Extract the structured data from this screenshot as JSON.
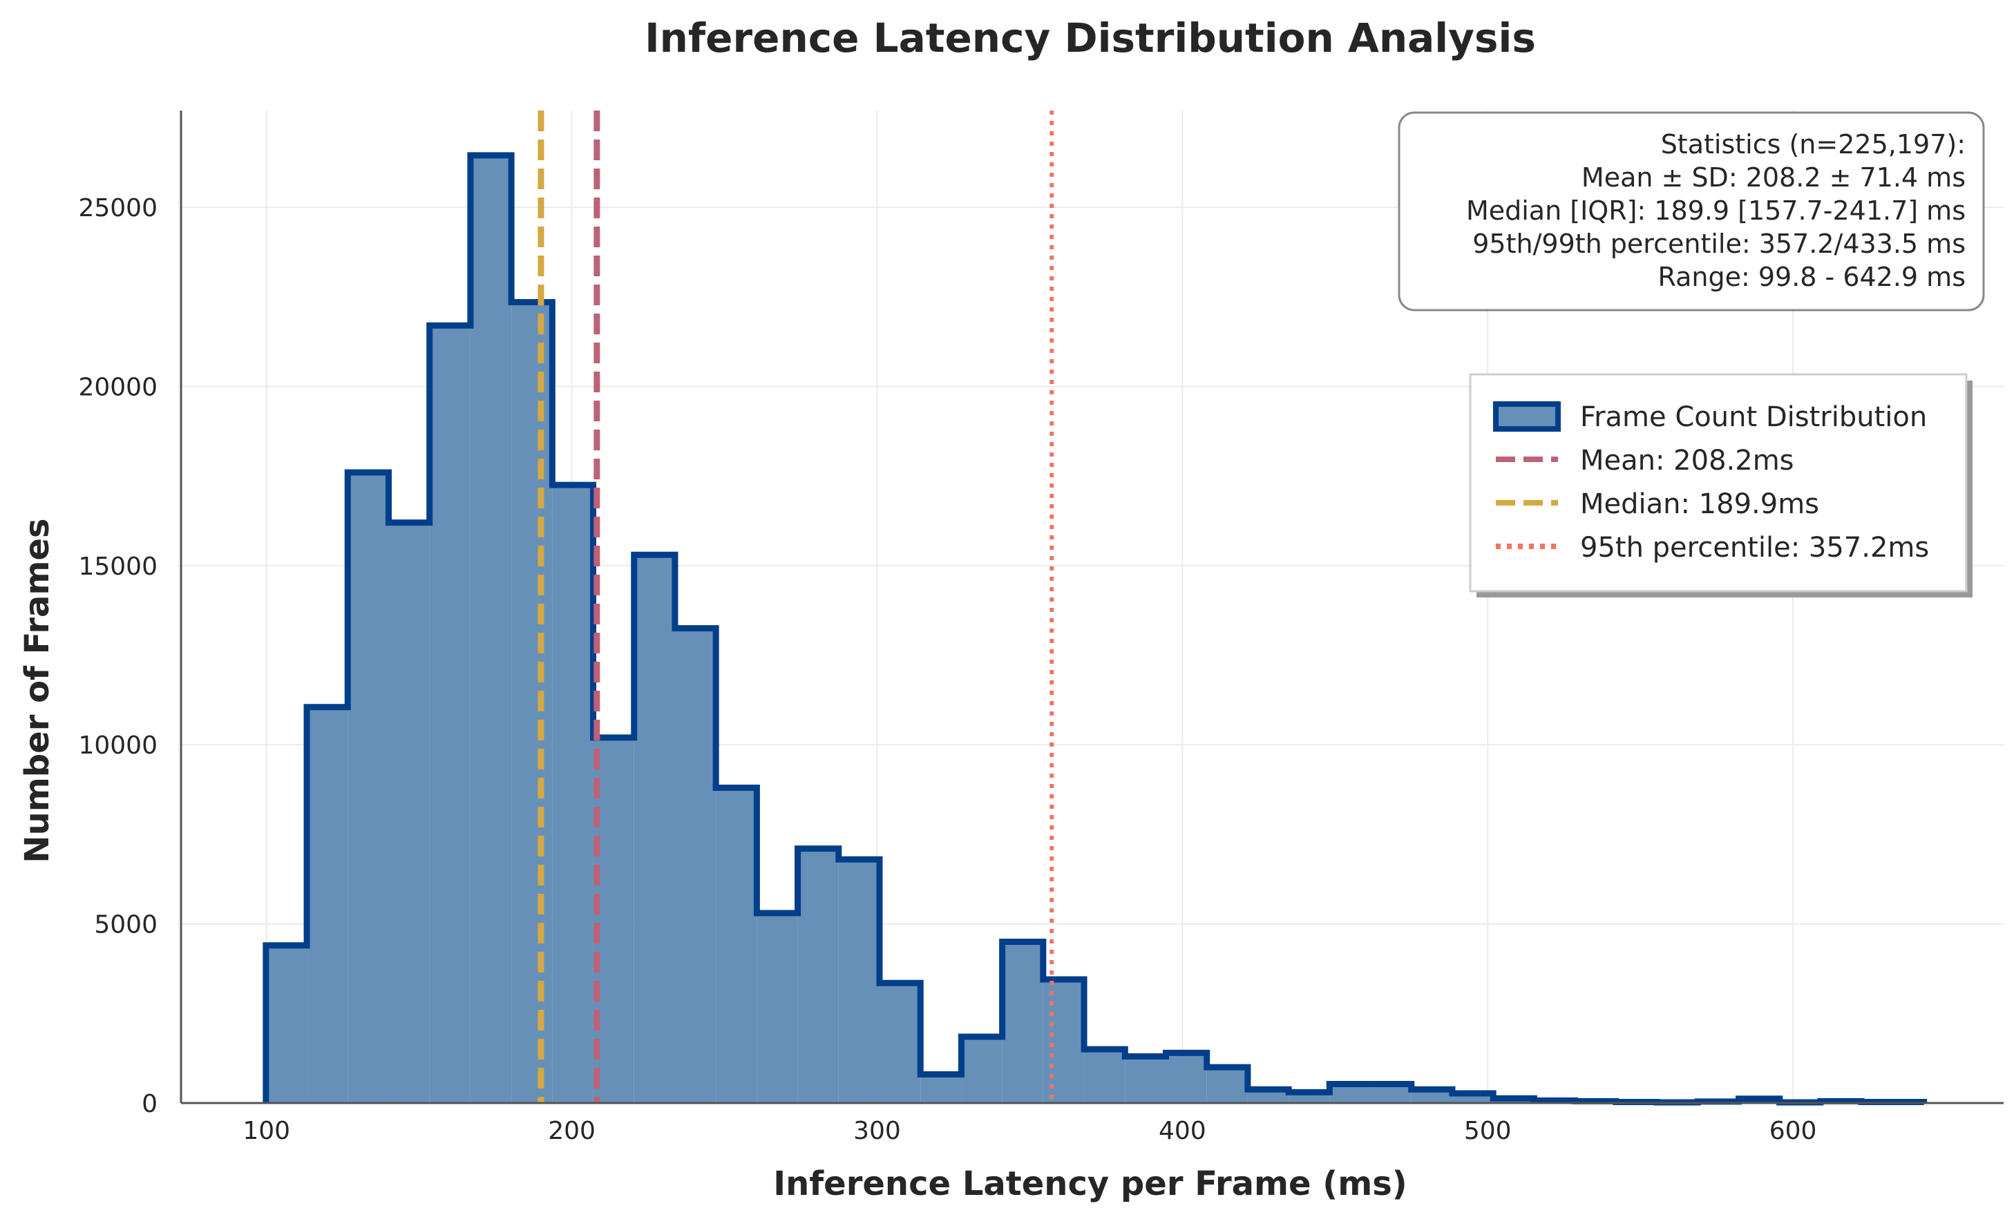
{
  "chart_data": {
    "type": "histogram",
    "title": "Inference Latency Distribution Analysis",
    "xlabel": "Inference Latency per Frame (ms)",
    "ylabel": "Number of Frames",
    "xlim": [
      72,
      669
    ],
    "ylim": [
      0,
      27700
    ],
    "xticks": [
      100,
      200,
      300,
      400,
      500,
      600
    ],
    "yticks": [
      0,
      5000,
      10000,
      15000,
      20000,
      25000
    ],
    "grid": true,
    "legend_position": "upper right",
    "colors": {
      "fill": "#6690B8",
      "edge": "#023E8A",
      "mean": "#BC6276",
      "median": "#D4A843",
      "p95": "#F57362",
      "axis": "#555555",
      "grid": "#EBEBEB"
    },
    "bins": [
      {
        "x0": 99.8,
        "x1": 113.2,
        "count": 4400
      },
      {
        "x0": 113.2,
        "x1": 126.6,
        "count": 11050
      },
      {
        "x0": 126.6,
        "x1": 140.0,
        "count": 17600
      },
      {
        "x0": 140.0,
        "x1": 153.4,
        "count": 16200
      },
      {
        "x0": 153.4,
        "x1": 166.8,
        "count": 21700
      },
      {
        "x0": 166.8,
        "x1": 180.2,
        "count": 26450
      },
      {
        "x0": 180.2,
        "x1": 193.6,
        "count": 22350
      },
      {
        "x0": 193.6,
        "x1": 207.0,
        "count": 17250
      },
      {
        "x0": 207.0,
        "x1": 220.4,
        "count": 10200
      },
      {
        "x0": 220.4,
        "x1": 233.8,
        "count": 15300
      },
      {
        "x0": 233.8,
        "x1": 247.2,
        "count": 13250
      },
      {
        "x0": 247.2,
        "x1": 260.6,
        "count": 8800
      },
      {
        "x0": 260.6,
        "x1": 274.0,
        "count": 5300
      },
      {
        "x0": 274.0,
        "x1": 287.4,
        "count": 7100
      },
      {
        "x0": 287.4,
        "x1": 300.8,
        "count": 6800
      },
      {
        "x0": 300.8,
        "x1": 314.2,
        "count": 3350
      },
      {
        "x0": 314.2,
        "x1": 327.6,
        "count": 800
      },
      {
        "x0": 327.6,
        "x1": 341.0,
        "count": 1850
      },
      {
        "x0": 341.0,
        "x1": 354.4,
        "count": 4500
      },
      {
        "x0": 354.4,
        "x1": 367.8,
        "count": 3450
      },
      {
        "x0": 367.8,
        "x1": 381.2,
        "count": 1500
      },
      {
        "x0": 381.2,
        "x1": 394.6,
        "count": 1300
      },
      {
        "x0": 394.6,
        "x1": 408.0,
        "count": 1400
      },
      {
        "x0": 408.0,
        "x1": 421.4,
        "count": 1000
      },
      {
        "x0": 421.4,
        "x1": 434.8,
        "count": 380
      },
      {
        "x0": 434.8,
        "x1": 448.2,
        "count": 300
      },
      {
        "x0": 448.2,
        "x1": 461.6,
        "count": 530
      },
      {
        "x0": 461.6,
        "x1": 475.0,
        "count": 530
      },
      {
        "x0": 475.0,
        "x1": 488.4,
        "count": 380
      },
      {
        "x0": 488.4,
        "x1": 501.8,
        "count": 270
      },
      {
        "x0": 501.8,
        "x1": 515.2,
        "count": 130
      },
      {
        "x0": 515.2,
        "x1": 528.6,
        "count": 70
      },
      {
        "x0": 528.6,
        "x1": 542.0,
        "count": 50
      },
      {
        "x0": 542.0,
        "x1": 555.4,
        "count": 30
      },
      {
        "x0": 555.4,
        "x1": 568.8,
        "count": 20
      },
      {
        "x0": 568.8,
        "x1": 582.2,
        "count": 40
      },
      {
        "x0": 582.2,
        "x1": 595.6,
        "count": 120
      },
      {
        "x0": 595.6,
        "x1": 609.0,
        "count": 20
      },
      {
        "x0": 609.0,
        "x1": 622.4,
        "count": 50
      },
      {
        "x0": 622.4,
        "x1": 642.9,
        "count": 30
      }
    ],
    "reference_lines": [
      {
        "name": "median",
        "x": 189.9,
        "style": "dashed"
      },
      {
        "name": "mean",
        "x": 208.2,
        "style": "dashed"
      },
      {
        "name": "p95",
        "x": 357.2,
        "style": "dotted"
      }
    ],
    "stats_box": [
      "Statistics (n=225,197):",
      "Mean ± SD: 208.2 ± 71.4 ms",
      "Median [IQR]: 189.9 [157.7-241.7] ms",
      "95th/99th percentile: 357.2/433.5 ms",
      "Range: 99.8 - 642.9 ms"
    ],
    "legend": [
      {
        "label": "Frame Count Distribution",
        "kind": "patch"
      },
      {
        "label": "Mean: 208.2ms",
        "kind": "dashed",
        "ref": "mean"
      },
      {
        "label": "Median: 189.9ms",
        "kind": "dashed",
        "ref": "median"
      },
      {
        "label": "95th percentile: 357.2ms",
        "kind": "dotted",
        "ref": "p95"
      }
    ]
  }
}
